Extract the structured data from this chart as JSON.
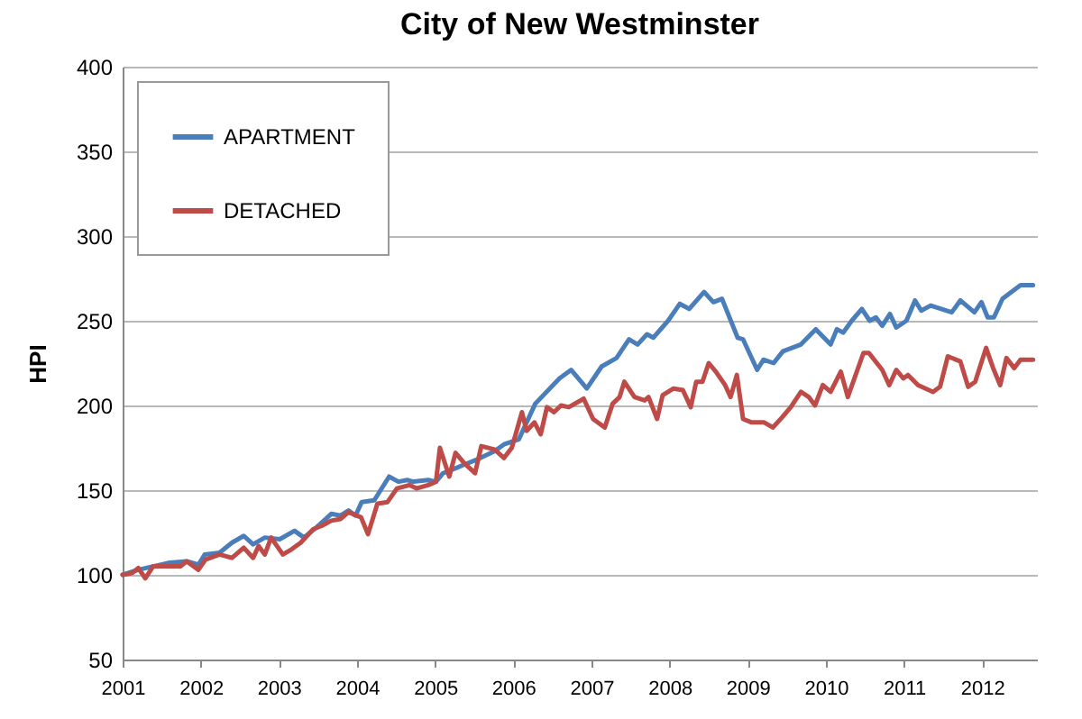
{
  "chart_data": {
    "type": "line",
    "title": "City of New Westminster",
    "ylabel": "HPI",
    "xlim": [
      2001,
      2012.7
    ],
    "xticks": [
      2001,
      2002,
      2003,
      2004,
      2005,
      2006,
      2007,
      2008,
      2009,
      2010,
      2011,
      2012
    ],
    "ylim": [
      50,
      400
    ],
    "yticks": [
      50,
      100,
      150,
      200,
      250,
      300,
      350,
      400
    ],
    "grid": "y",
    "legend": "top left",
    "series": [
      {
        "name": "APARTMENT",
        "color": "#4a7ebb",
        "x": [
          2001.0,
          2001.2,
          2001.39,
          2001.58,
          2001.82,
          2001.97,
          2002.05,
          2002.24,
          2002.4,
          2002.55,
          2002.67,
          2002.82,
          2003.01,
          2003.2,
          2003.32,
          2003.48,
          2003.67,
          2003.79,
          2003.89,
          2003.98,
          2004.06,
          2004.22,
          2004.41,
          2004.53,
          2004.64,
          2004.72,
          2004.91,
          2005.01,
          2005.1,
          2005.37,
          2005.53,
          2005.76,
          2005.88,
          2006.07,
          2006.28,
          2006.59,
          2006.74,
          2006.94,
          2007.13,
          2007.32,
          2007.48,
          2007.59,
          2007.71,
          2007.79,
          2007.98,
          2008.13,
          2008.25,
          2008.44,
          2008.56,
          2008.67,
          2008.87,
          2008.94,
          2009.12,
          2009.2,
          2009.33,
          2009.45,
          2009.68,
          2009.87,
          2010.06,
          2010.14,
          2010.22,
          2010.33,
          2010.46,
          2010.56,
          2010.64,
          2010.72,
          2010.82,
          2010.9,
          2011.03,
          2011.14,
          2011.22,
          2011.34,
          2011.61,
          2011.72,
          2011.9,
          2011.99,
          2012.07,
          2012.15,
          2012.26,
          2012.49,
          2012.65
        ],
        "values": [
          100,
          103,
          105,
          107,
          108,
          106,
          112,
          113,
          119,
          123,
          118,
          122,
          121,
          126,
          122,
          128,
          136,
          135,
          138,
          135,
          143,
          144,
          158,
          155,
          156,
          155,
          156,
          155,
          160,
          165,
          168,
          173,
          177,
          180,
          201,
          216,
          221,
          210,
          223,
          228,
          239,
          236,
          242,
          240,
          250,
          260,
          257,
          267,
          261,
          263,
          240,
          239,
          221,
          227,
          225,
          232,
          236,
          245,
          236,
          245,
          243,
          250,
          257,
          250,
          252,
          247,
          254,
          246,
          250,
          262,
          256,
          259,
          255,
          262,
          255,
          261,
          252,
          252,
          263,
          271,
          271
        ]
      },
      {
        "name": "DETACHED",
        "color": "#be4b48",
        "x": [
          2001.0,
          2001.12,
          2001.2,
          2001.29,
          2001.39,
          2001.55,
          2001.74,
          2001.82,
          2001.97,
          2002.06,
          2002.24,
          2002.4,
          2002.55,
          2002.67,
          2002.74,
          2002.82,
          2002.9,
          2003.05,
          2003.16,
          2003.28,
          2003.44,
          2003.55,
          2003.67,
          2003.79,
          2003.89,
          2004.05,
          2004.14,
          2004.26,
          2004.39,
          2004.51,
          2004.67,
          2004.76,
          2004.91,
          2005.01,
          2005.06,
          2005.18,
          2005.26,
          2005.37,
          2005.51,
          2005.59,
          2005.76,
          2005.88,
          2005.98,
          2006.11,
          2006.17,
          2006.27,
          2006.35,
          2006.43,
          2006.52,
          2006.61,
          2006.71,
          2006.9,
          2007.02,
          2007.17,
          2007.27,
          2007.36,
          2007.42,
          2007.55,
          2007.68,
          2007.73,
          2007.84,
          2007.91,
          2008.05,
          2008.17,
          2008.27,
          2008.34,
          2008.42,
          2008.5,
          2008.59,
          2008.71,
          2008.78,
          2008.86,
          2008.94,
          2009.05,
          2009.21,
          2009.32,
          2009.44,
          2009.55,
          2009.68,
          2009.78,
          2009.86,
          2009.96,
          2010.06,
          2010.19,
          2010.28,
          2010.48,
          2010.55,
          2010.72,
          2010.81,
          2010.9,
          2010.99,
          2011.05,
          2011.18,
          2011.37,
          2011.46,
          2011.56,
          2011.72,
          2011.82,
          2011.91,
          2012.05,
          2012.14,
          2012.23,
          2012.31,
          2012.41,
          2012.49,
          2012.65
        ],
        "values": [
          100,
          101,
          104,
          98,
          105,
          105,
          105,
          108,
          103,
          109,
          112,
          110,
          116,
          110,
          117,
          112,
          122,
          112,
          115,
          119,
          127,
          129,
          132,
          133,
          137,
          134,
          124,
          142,
          143,
          151,
          153,
          151,
          153,
          155,
          175,
          158,
          172,
          166,
          160,
          176,
          174,
          169,
          175,
          196,
          185,
          190,
          183,
          199,
          196,
          200,
          199,
          204,
          192,
          187,
          201,
          205,
          214,
          205,
          203,
          205,
          192,
          206,
          210,
          209,
          199,
          214,
          214,
          225,
          220,
          212,
          205,
          218,
          192,
          190,
          190,
          187,
          193,
          199,
          208,
          205,
          200,
          212,
          208,
          220,
          205,
          231,
          231,
          221,
          212,
          221,
          216,
          218,
          212,
          208,
          211,
          229,
          226,
          211,
          214,
          234,
          222,
          212,
          228,
          222,
          227,
          227
        ]
      }
    ]
  }
}
